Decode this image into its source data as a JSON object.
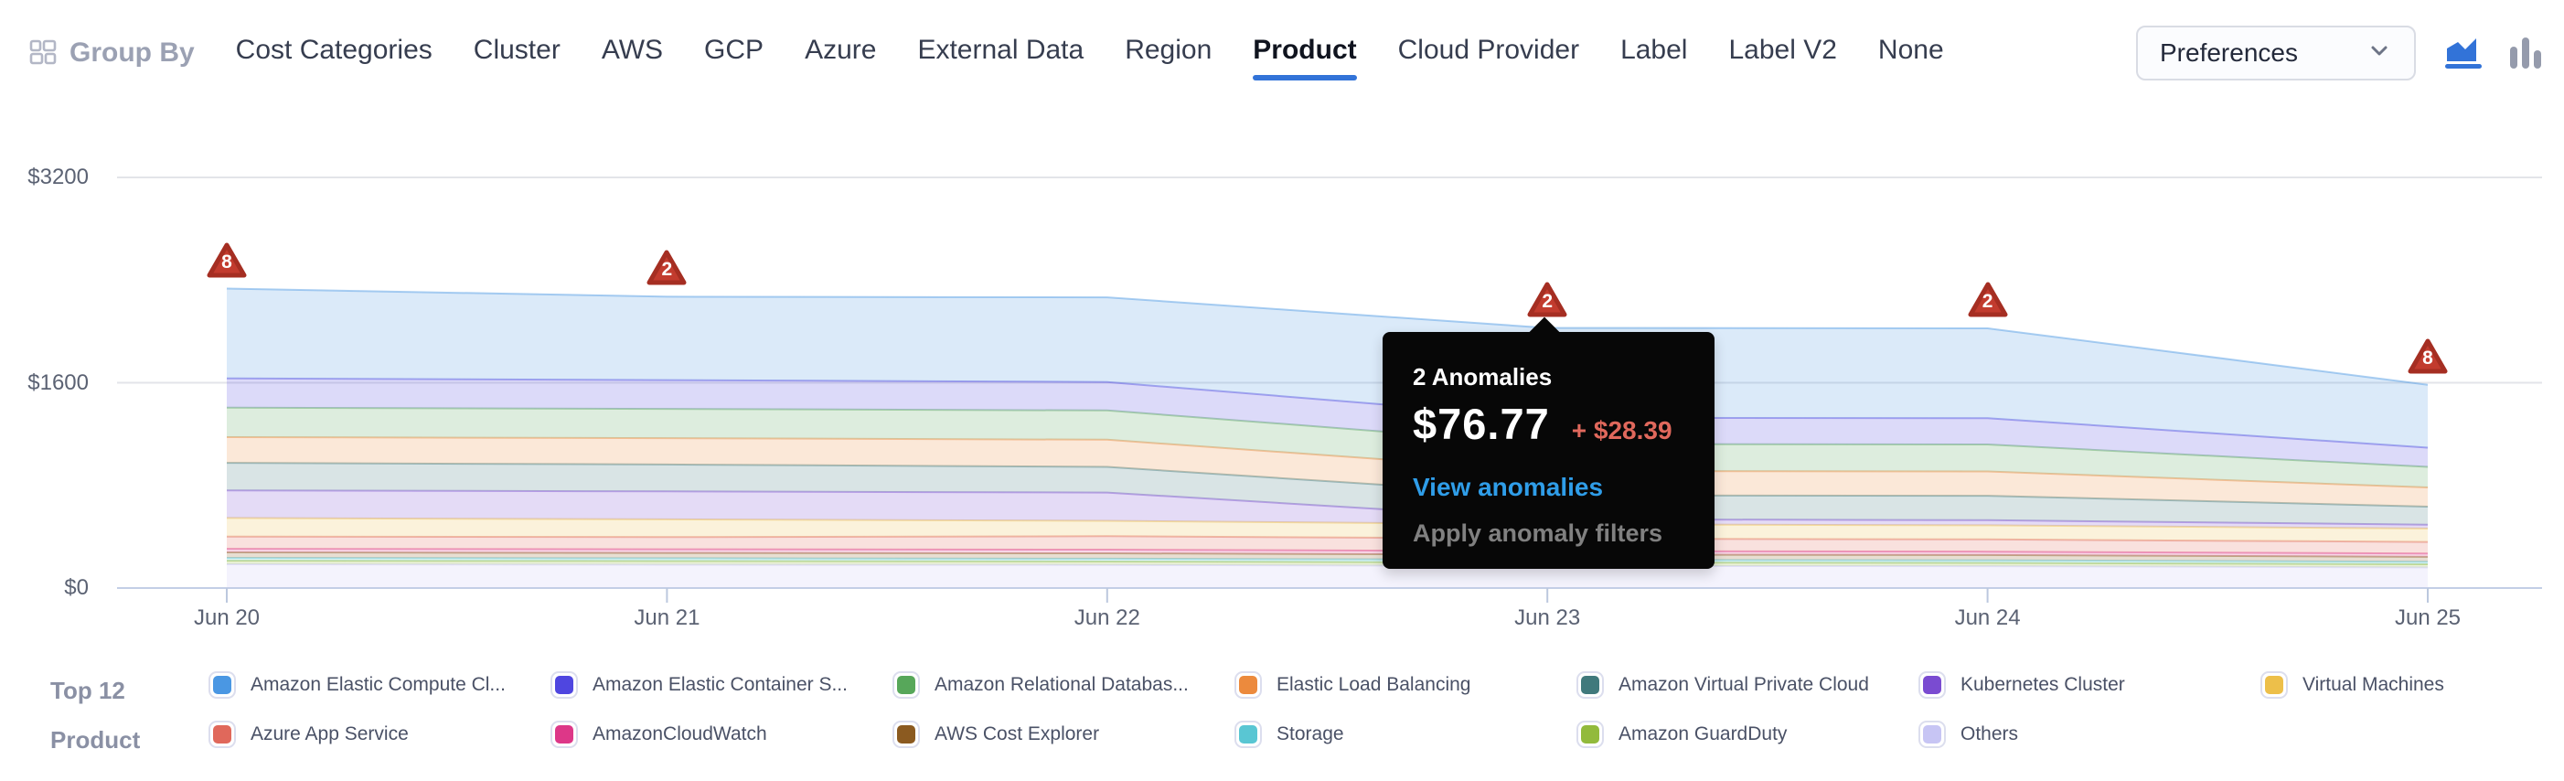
{
  "colors": {
    "accent": "#3273d8",
    "marker_red": "#c23b2e",
    "marker_red_border": "#a52e22",
    "tooltip_link_blue": "#2f9de8",
    "tooltip_delta_red": "#e0685c",
    "gridline": "#e3e4e9",
    "axis_line": "#c3cee6",
    "tick": "#bcc8de"
  },
  "header": {
    "group_by_label": "Group By",
    "tabs": [
      {
        "label": "Cost Categories",
        "active": false
      },
      {
        "label": "Cluster",
        "active": false
      },
      {
        "label": "AWS",
        "active": false
      },
      {
        "label": "GCP",
        "active": false
      },
      {
        "label": "Azure",
        "active": false
      },
      {
        "label": "External Data",
        "active": false
      },
      {
        "label": "Region",
        "active": false
      },
      {
        "label": "Product",
        "active": true
      },
      {
        "label": "Cloud Provider",
        "active": false
      },
      {
        "label": "Label",
        "active": false
      },
      {
        "label": "Label V2",
        "active": false
      },
      {
        "label": "None",
        "active": false
      }
    ],
    "preferences_label": "Preferences",
    "view_toggles": [
      {
        "name": "area-chart",
        "active": true
      },
      {
        "name": "bar-chart",
        "active": false
      }
    ]
  },
  "chart_data": {
    "type": "area",
    "stacked": true,
    "stack_order": "first-series-on-top",
    "x": [
      "Jun 20",
      "Jun 21",
      "Jun 22",
      "Jun 23",
      "Jun 24",
      "Jun 25"
    ],
    "ylim": [
      0,
      3200
    ],
    "y_ticks": [
      {
        "value": 0,
        "label": "$0"
      },
      {
        "value": 1600,
        "label": "$1600"
      },
      {
        "value": 3200,
        "label": "$3200"
      }
    ],
    "grid": true,
    "legend_position": "bottom",
    "series": [
      {
        "name": "Amazon Elastic Compute Cl...",
        "color": "#4a97e3",
        "values": [
          700,
          650,
          660,
          700,
          700,
          490
        ]
      },
      {
        "name": "Amazon Elastic Container S...",
        "color": "#4f46e0",
        "values": [
          228,
          225,
          222,
          205,
          205,
          150
        ]
      },
      {
        "name": "Amazon Relational Databas...",
        "color": "#57a75a",
        "values": [
          230,
          228,
          228,
          210,
          210,
          160
        ]
      },
      {
        "name": "Elastic Load Balancing",
        "color": "#ec8a3d",
        "values": [
          200,
          205,
          212,
          190,
          190,
          150
        ]
      },
      {
        "name": "Amazon Virtual Private Cloud",
        "color": "#40797c",
        "values": [
          215,
          210,
          200,
          185,
          190,
          140
        ]
      },
      {
        "name": "Kubernetes Cluster",
        "color": "#7a4bd1",
        "values": [
          215,
          218,
          220,
          40,
          40,
          30
        ]
      },
      {
        "name": "Virtual Machines",
        "color": "#edbf4a",
        "values": [
          145,
          138,
          120,
          112,
          110,
          105
        ]
      },
      {
        "name": "Azure App Service",
        "color": "#e0685b",
        "values": [
          95,
          95,
          105,
          98,
          95,
          90
        ]
      },
      {
        "name": "AmazonCloudWatch",
        "color": "#dd3788",
        "values": [
          28,
          28,
          28,
          27,
          27,
          26
        ]
      },
      {
        "name": "AWS Cost Explorer",
        "color": "#8b5a20",
        "values": [
          43,
          42,
          42,
          40,
          40,
          38
        ]
      },
      {
        "name": "Storage",
        "color": "#59c6d3",
        "values": [
          22,
          22,
          22,
          21,
          21,
          20
        ]
      },
      {
        "name": "Amazon GuardDuty",
        "color": "#92ba3c",
        "values": [
          28,
          28,
          27,
          27,
          26,
          25
        ]
      },
      {
        "name": "Others",
        "color": "#c7c5f4",
        "values": [
          185,
          182,
          180,
          172,
          170,
          160
        ]
      }
    ],
    "anomalies": [
      {
        "x": "Jun 20",
        "count": 8
      },
      {
        "x": "Jun 21",
        "count": 2
      },
      {
        "x": "Jun 23",
        "count": 2,
        "tooltip_open": true
      },
      {
        "x": "Jun 24",
        "count": 2
      },
      {
        "x": "Jun 25",
        "count": 8
      }
    ],
    "tooltip": {
      "title": "2 Anomalies",
      "amount": "$76.77",
      "delta": "+ $28.39",
      "link": "View anomalies",
      "action": "Apply anomaly filters"
    }
  },
  "legend": {
    "title_line1": "Top 12",
    "title_line2": "Product"
  }
}
